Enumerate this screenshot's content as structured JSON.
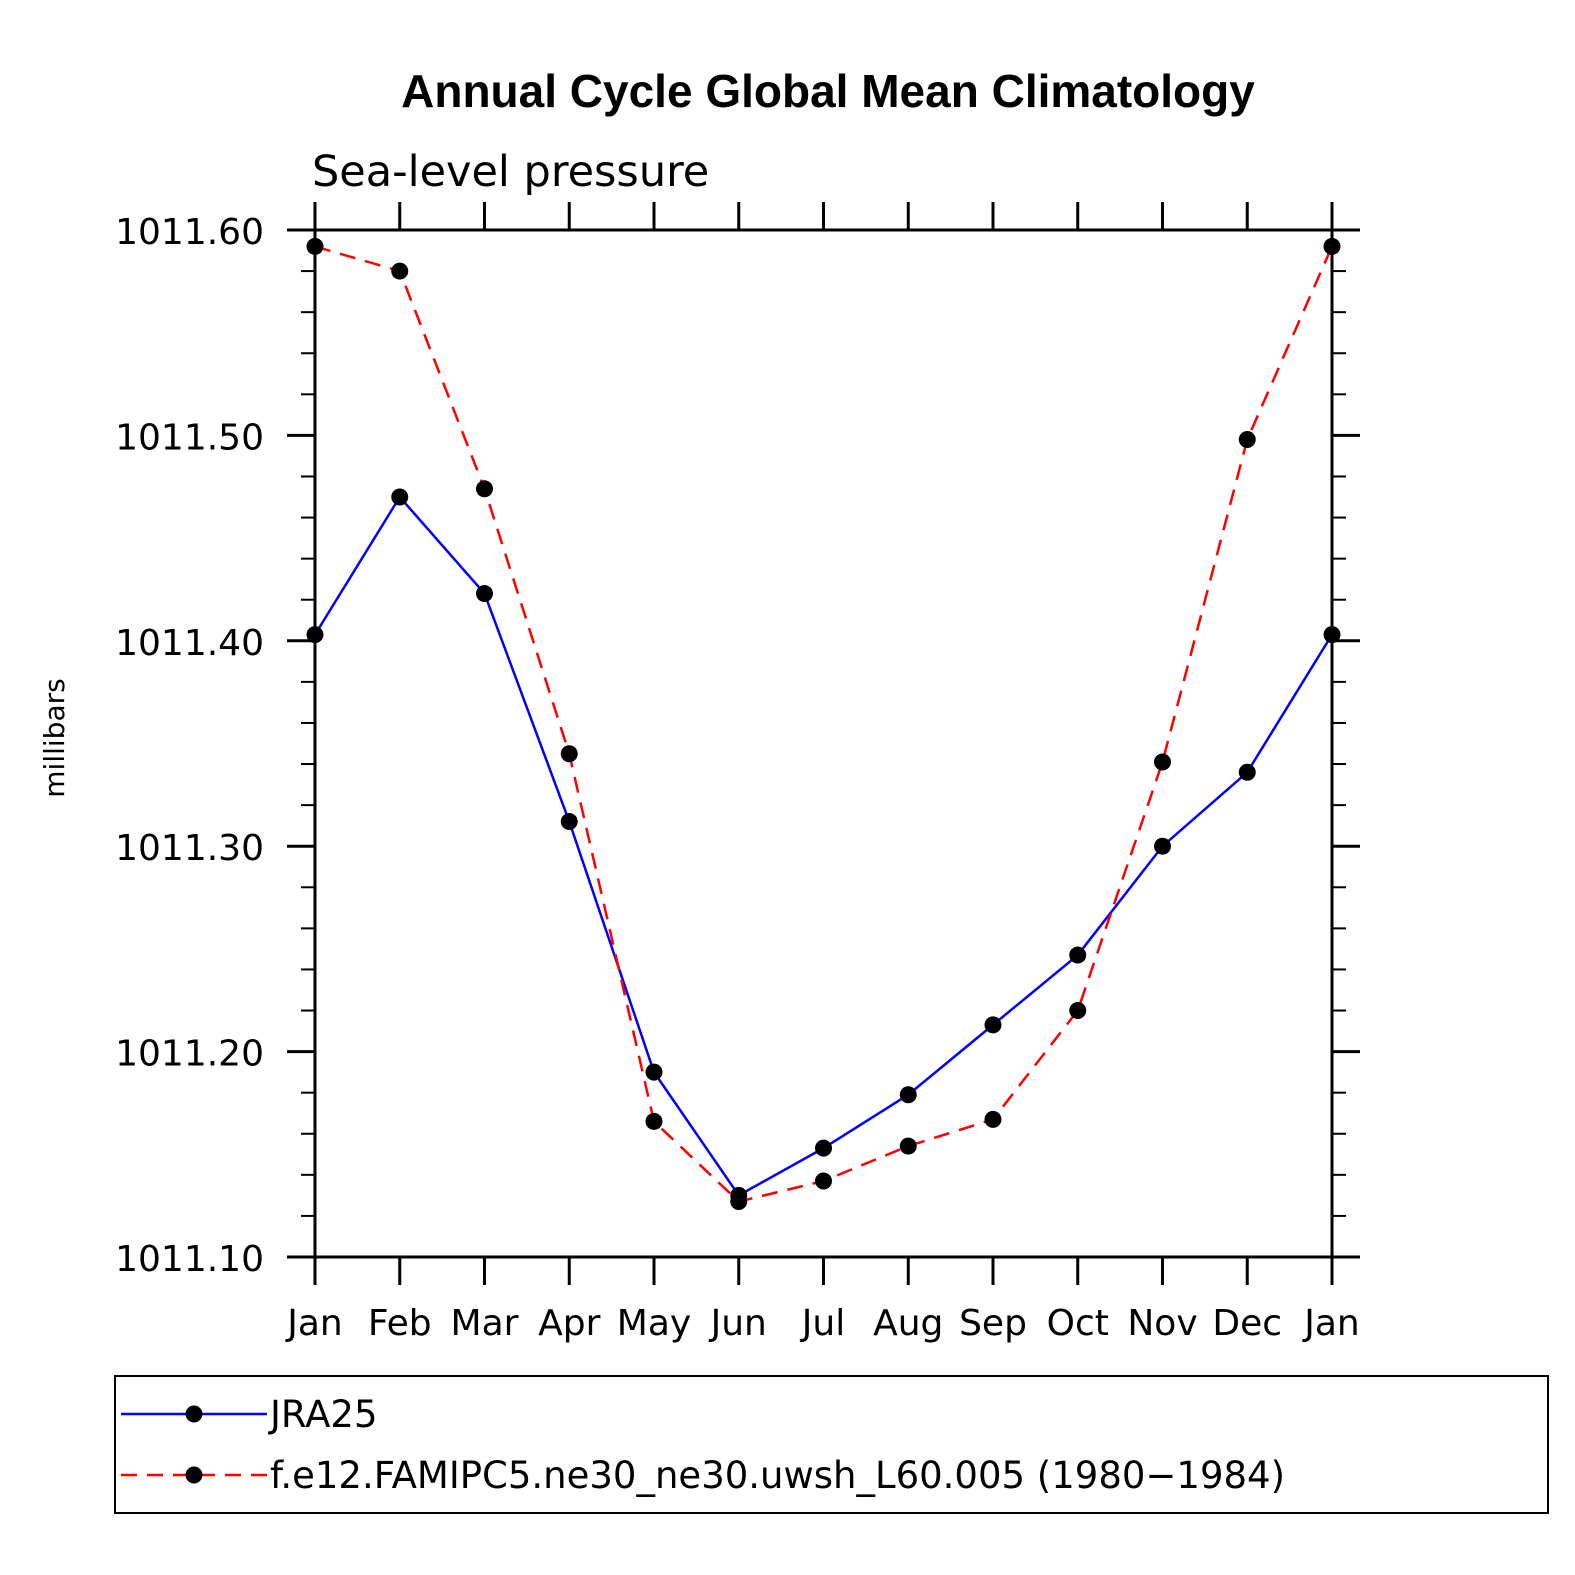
{
  "chart_data": {
    "type": "line",
    "title": "Annual Cycle Global Mean Climatology",
    "subtitle": "Sea-level pressure",
    "ylabel": "millibars",
    "xlabel": "",
    "categories": [
      "Jan",
      "Feb",
      "Mar",
      "Apr",
      "May",
      "Jun",
      "Jul",
      "Aug",
      "Sep",
      "Oct",
      "Nov",
      "Dec",
      "Jan"
    ],
    "ylim": [
      1011.1,
      1011.6
    ],
    "yticks": [
      "1011.10",
      "1011.20",
      "1011.30",
      "1011.40",
      "1011.50",
      "1011.60"
    ],
    "ytick_values": [
      1011.1,
      1011.2,
      1011.3,
      1011.4,
      1011.5,
      1011.6
    ],
    "minor_step": 0.02,
    "grid": false,
    "legend_position": "bottom",
    "series": [
      {
        "name": "JRA25",
        "color": "#0000ff",
        "style": "solid",
        "values": [
          1011.403,
          1011.47,
          1011.423,
          1011.312,
          1011.19,
          1011.13,
          1011.153,
          1011.179,
          1011.213,
          1011.247,
          1011.3,
          1011.336,
          1011.403
        ]
      },
      {
        "name": "f.e12.FAMIPC5.ne30_ne30.uwsh_L60.005 (1980−1984)",
        "color": "#ff0000",
        "style": "dashed",
        "values": [
          1011.592,
          1011.58,
          1011.474,
          1011.345,
          1011.166,
          1011.127,
          1011.137,
          1011.154,
          1011.167,
          1011.22,
          1011.341,
          1011.498,
          1011.592
        ]
      }
    ]
  }
}
